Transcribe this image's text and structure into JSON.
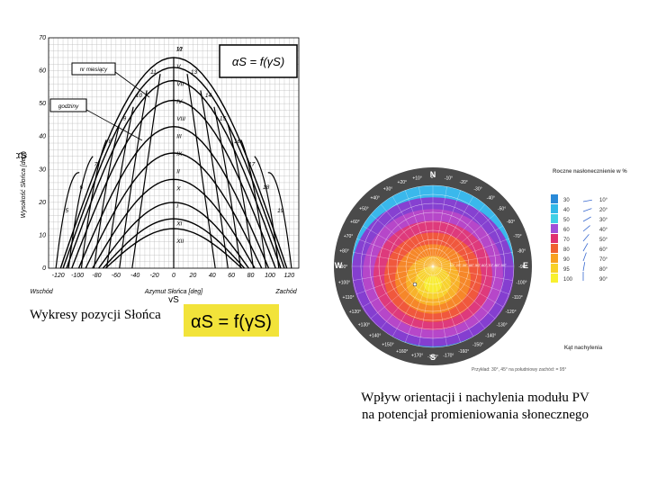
{
  "left_chart": {
    "y_axis_label": "Wysokość Słońca [deg]",
    "x_axis_label": "Azymut Słońca [deg]",
    "symbol_left": "αS",
    "symbol_bottom": "γS",
    "east_label": "Wschód",
    "west_label": "Zachód",
    "formula": "αS = f(γS)",
    "label_months": "nr miesiący",
    "label_hours": "godziny",
    "y_ticks": [
      "0",
      "10",
      "20",
      "30",
      "40",
      "50",
      "60",
      "70"
    ],
    "x_ticks": [
      "-120",
      "-100",
      "-80",
      "-60",
      "-40",
      "-20",
      "0",
      "20",
      "40",
      "60",
      "80",
      "100",
      "120"
    ],
    "month_labels": [
      "VI",
      "V",
      "VII",
      "IV",
      "VIII",
      "III",
      "IX",
      "II",
      "X",
      "I",
      "XI",
      "XII"
    ],
    "hour_labels": [
      "5",
      "6",
      "7",
      "8",
      "9",
      "10",
      "11",
      "12",
      "13",
      "14",
      "15",
      "16",
      "17",
      "18",
      "19"
    ]
  },
  "right_chart": {
    "north": "N",
    "south": "S",
    "west": "W",
    "east": "E",
    "legend_title": "Roczne nasłonecznienie w %",
    "legend_values": [
      "30",
      "40",
      "50",
      "60",
      "70",
      "80",
      "90",
      "95",
      "100"
    ],
    "legend_colors": [
      "#2a8ad8",
      "#32b8e8",
      "#3fd0e6",
      "#a050d8",
      "#e03070",
      "#f06030",
      "#f8a020",
      "#f8d028",
      "#f8f030"
    ],
    "tilt_labels": [
      "10°",
      "20°",
      "30°",
      "40°",
      "50°",
      "60°",
      "70°",
      "80°",
      "90°"
    ],
    "tilt_title": "Kąt nachylenia",
    "example": "Przykład: 30°, 45° na południowy zachód: = 95°",
    "ring_labels": [
      "-180°",
      "-170°",
      "-160°",
      "-150°",
      "-140°",
      "-130°",
      "-120°",
      "-110°",
      "-100°",
      "-90°",
      "-80°",
      "-70°",
      "-60°",
      "-50°",
      "-40°",
      "-30°",
      "-20°",
      "-10°",
      "0°",
      "+10°",
      "+20°",
      "+30°",
      "+40°",
      "+50°",
      "+60°",
      "+70°",
      "+80°",
      "+90°",
      "+100°",
      "+110°",
      "+120°",
      "+130°",
      "+140°",
      "+150°",
      "+160°",
      "+170°"
    ],
    "center_scale": "10° 20° 30° 40° 50° 60° 70° 80° 90°"
  },
  "captions": {
    "left": "Wykresy pozycji Słońca",
    "formula": "αS = f(γS)",
    "right_line1": "Wpływ orientacji i nachylenia modułu PV",
    "right_line2": "na potencjał promieniowania słonecznego"
  }
}
